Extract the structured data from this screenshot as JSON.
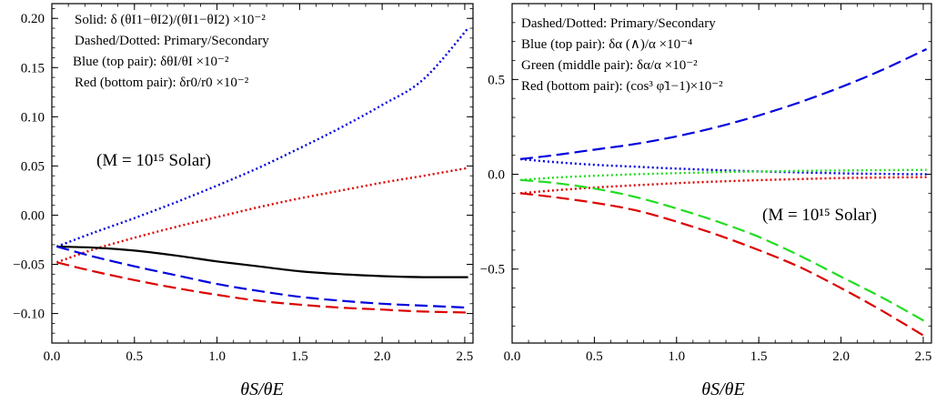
{
  "chart_data": [
    {
      "type": "line",
      "xlabel": "θS/θE",
      "xlim": [
        0,
        2.55
      ],
      "ylim": [
        -0.13,
        0.215
      ],
      "xticks": [
        0.0,
        0.5,
        1.0,
        1.5,
        2.0,
        2.5
      ],
      "yticks": [
        -0.1,
        -0.05,
        0.0,
        0.05,
        0.1,
        0.15,
        0.2
      ],
      "xtick_labels": [
        "0.0",
        "0.5",
        "1.0",
        "1.5",
        "2.0",
        "2.5"
      ],
      "ytick_labels": [
        "−0.10",
        "−0.05",
        "0.00",
        "0.05",
        "0.10",
        "0.15",
        "0.20"
      ],
      "legend_lines": [
        "Solid: δ (θI1−θI2)/(θI1−θI2) ×10⁻²",
        "Dashed/Dotted: Primary/Secondary",
        "Blue (top pair):  δθI/θI ×10⁻²",
        "Red (bottom pair): δr0/r0 ×10⁻²"
      ],
      "annotation": "(M = 10¹⁵ Solar)",
      "grid": false,
      "series": [
        {
          "color": "#0000dd",
          "style": "dotted",
          "x": [
            0.03,
            0.25,
            0.5,
            0.75,
            1.0,
            1.25,
            1.5,
            1.75,
            2.0,
            2.25,
            2.52
          ],
          "y": [
            -0.032,
            -0.018,
            -0.003,
            0.013,
            0.03,
            0.048,
            0.068,
            0.089,
            0.112,
            0.138,
            0.19
          ]
        },
        {
          "color": "#dd0000",
          "style": "dotted",
          "x": [
            0.03,
            0.25,
            0.5,
            0.75,
            1.0,
            1.25,
            1.5,
            1.75,
            2.0,
            2.25,
            2.52
          ],
          "y": [
            -0.048,
            -0.035,
            -0.023,
            -0.012,
            -0.002,
            0.008,
            0.017,
            0.025,
            0.033,
            0.04,
            0.048
          ]
        },
        {
          "color": "#000000",
          "style": "solid",
          "x": [
            0.03,
            0.25,
            0.5,
            0.75,
            1.0,
            1.25,
            1.5,
            1.75,
            2.0,
            2.25,
            2.52
          ],
          "y": [
            -0.032,
            -0.033,
            -0.036,
            -0.041,
            -0.047,
            -0.052,
            -0.057,
            -0.06,
            -0.062,
            -0.063,
            -0.063
          ]
        },
        {
          "color": "#0000dd",
          "style": "dashed",
          "x": [
            0.03,
            0.25,
            0.5,
            0.75,
            1.0,
            1.25,
            1.5,
            1.75,
            2.0,
            2.25,
            2.52
          ],
          "y": [
            -0.032,
            -0.042,
            -0.052,
            -0.061,
            -0.07,
            -0.077,
            -0.083,
            -0.087,
            -0.09,
            -0.092,
            -0.094
          ]
        },
        {
          "color": "#dd0000",
          "style": "dashed",
          "x": [
            0.03,
            0.25,
            0.5,
            0.75,
            1.0,
            1.25,
            1.5,
            1.75,
            2.0,
            2.25,
            2.52
          ],
          "y": [
            -0.048,
            -0.057,
            -0.066,
            -0.074,
            -0.081,
            -0.087,
            -0.091,
            -0.094,
            -0.096,
            -0.098,
            -0.099
          ]
        }
      ]
    },
    {
      "type": "line",
      "xlabel": "θS/θE",
      "xlim": [
        0,
        2.55
      ],
      "ylim": [
        -0.89,
        0.9
      ],
      "xticks": [
        0.0,
        0.5,
        1.0,
        1.5,
        2.0,
        2.5
      ],
      "yticks": [
        -0.5,
        0.0,
        0.5
      ],
      "xtick_labels": [
        "0.0",
        "0.5",
        "1.0",
        "1.5",
        "2.0",
        "2.5"
      ],
      "ytick_labels": [
        "−0.5",
        "0.0",
        "0.5"
      ],
      "legend_lines": [
        "Dashed/Dotted: Primary/Secondary",
        "Blue (top pair): δα (∧)/α ×10⁻⁴",
        "Green (middle pair): δα/α ×10⁻²",
        "Red (bottom pair): (cos³ φ̃1−1)×10⁻²"
      ],
      "annotation": "(M = 10¹⁵ Solar)",
      "grid": false,
      "series": [
        {
          "color": "#0000dd",
          "style": "dashed",
          "x": [
            0.05,
            0.25,
            0.5,
            0.75,
            1.0,
            1.25,
            1.5,
            1.75,
            2.0,
            2.25,
            2.52
          ],
          "y": [
            0.08,
            0.1,
            0.13,
            0.16,
            0.2,
            0.25,
            0.31,
            0.38,
            0.46,
            0.55,
            0.66
          ]
        },
        {
          "color": "#0000dd",
          "style": "dotted",
          "x": [
            0.05,
            0.25,
            0.5,
            0.75,
            1.0,
            1.25,
            1.5,
            1.75,
            2.0,
            2.25,
            2.52
          ],
          "y": [
            0.08,
            0.065,
            0.05,
            0.04,
            0.03,
            0.022,
            0.015,
            0.01,
            0.005,
            0.002,
            0.0
          ]
        },
        {
          "color": "#22dd22",
          "style": "dotted",
          "x": [
            0.05,
            0.25,
            0.5,
            0.75,
            1.0,
            1.25,
            1.5,
            1.75,
            2.0,
            2.25,
            2.52
          ],
          "y": [
            -0.03,
            -0.018,
            -0.008,
            0.0,
            0.006,
            0.011,
            0.015,
            0.018,
            0.02,
            0.022,
            0.023
          ]
        },
        {
          "color": "#dd0000",
          "style": "dotted",
          "x": [
            0.05,
            0.25,
            0.5,
            0.75,
            1.0,
            1.25,
            1.5,
            1.75,
            2.0,
            2.25,
            2.52
          ],
          "y": [
            -0.1,
            -0.085,
            -0.07,
            -0.058,
            -0.047,
            -0.038,
            -0.031,
            -0.025,
            -0.02,
            -0.017,
            -0.015
          ]
        },
        {
          "color": "#22dd22",
          "style": "dashed",
          "x": [
            0.05,
            0.25,
            0.5,
            0.75,
            1.0,
            1.25,
            1.5,
            1.75,
            2.0,
            2.25,
            2.52
          ],
          "y": [
            -0.03,
            -0.045,
            -0.075,
            -0.12,
            -0.18,
            -0.25,
            -0.33,
            -0.43,
            -0.54,
            -0.65,
            -0.78
          ]
        },
        {
          "color": "#dd0000",
          "style": "dashed",
          "x": [
            0.05,
            0.25,
            0.5,
            0.75,
            1.0,
            1.25,
            1.5,
            1.75,
            2.0,
            2.25,
            2.52
          ],
          "y": [
            -0.1,
            -0.12,
            -0.15,
            -0.19,
            -0.25,
            -0.32,
            -0.4,
            -0.49,
            -0.6,
            -0.72,
            -0.86
          ]
        }
      ]
    }
  ]
}
